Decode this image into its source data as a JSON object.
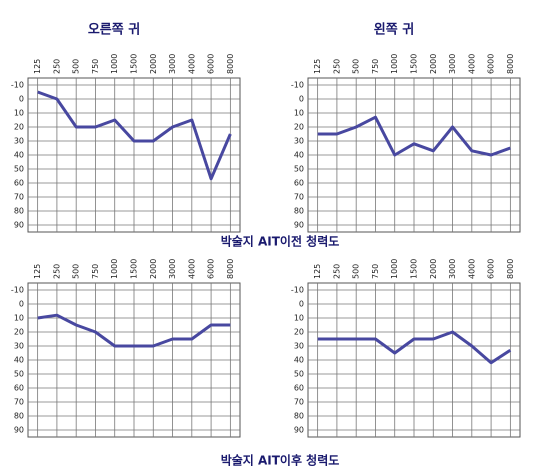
{
  "captions": [
    "박술지 AIT이전 청력도",
    "박술지 AIT이후 청력도"
  ],
  "chart_data": [
    {
      "type": "line",
      "title": "오른쪽 귀",
      "invert_y": true,
      "grid": true,
      "color": "#4848a0",
      "categories": [
        "125",
        "250",
        "500",
        "750",
        "1000",
        "1500",
        "2000",
        "3000",
        "4000",
        "6000",
        "8000"
      ],
      "values": [
        -5,
        0,
        20,
        20,
        15,
        30,
        30,
        20,
        15,
        57,
        25
      ],
      "ylim": [
        -15,
        95
      ],
      "yticks": [
        -10,
        0,
        10,
        20,
        30,
        40,
        50,
        60,
        70,
        80,
        90
      ]
    },
    {
      "type": "line",
      "title": "왼쪽 귀",
      "invert_y": true,
      "grid": true,
      "color": "#4848a0",
      "categories": [
        "125",
        "250",
        "500",
        "750",
        "1000",
        "1500",
        "2000",
        "3000",
        "4000",
        "6000",
        "8000"
      ],
      "values": [
        25,
        25,
        20,
        13,
        40,
        32,
        37,
        20,
        37,
        40,
        35
      ],
      "ylim": [
        -15,
        95
      ],
      "yticks": [
        -10,
        0,
        10,
        20,
        30,
        40,
        50,
        60,
        70,
        80,
        90
      ]
    },
    {
      "type": "line",
      "invert_y": true,
      "grid": true,
      "color": "#4848a0",
      "categories": [
        "125",
        "250",
        "500",
        "750",
        "1000",
        "1500",
        "2000",
        "3000",
        "4000",
        "6000",
        "8000"
      ],
      "values": [
        10,
        8,
        15,
        20,
        30,
        30,
        30,
        25,
        25,
        15,
        15
      ],
      "ylim": [
        -15,
        95
      ],
      "yticks": [
        -10,
        0,
        10,
        20,
        30,
        40,
        50,
        60,
        70,
        80,
        90
      ]
    },
    {
      "type": "line",
      "invert_y": true,
      "grid": true,
      "color": "#4848a0",
      "categories": [
        "125",
        "250",
        "500",
        "750",
        "1000",
        "1500",
        "2000",
        "3000",
        "4000",
        "6000",
        "8000"
      ],
      "values": [
        25,
        25,
        25,
        25,
        35,
        25,
        25,
        20,
        30,
        42,
        33
      ],
      "ylim": [
        -15,
        95
      ],
      "yticks": [
        -10,
        0,
        10,
        20,
        30,
        40,
        50,
        60,
        70,
        80,
        90
      ]
    }
  ]
}
